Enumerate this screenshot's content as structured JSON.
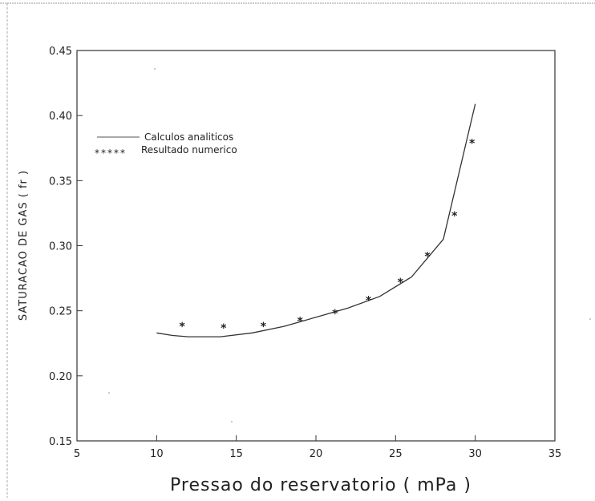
{
  "chart_data": {
    "type": "line",
    "title": "",
    "xlabel": "Pressao do reservatorio ( mPa )",
    "ylabel": "SATURACAO DE GAS ( fr )",
    "xlim": [
      5,
      35
    ],
    "ylim": [
      0.15,
      0.45
    ],
    "x_ticks": [
      "5",
      "10",
      "15",
      "20",
      "25",
      "30",
      "35"
    ],
    "y_ticks": [
      "0.15",
      "0.20",
      "0.25",
      "0.30",
      "0.35",
      "0.40",
      "0.45"
    ],
    "grid": false,
    "legend_position": "top-left",
    "series": [
      {
        "name": "Calculos analiticos",
        "style": "line",
        "color": "#333333",
        "x": [
          10,
          11,
          12,
          14,
          16,
          18,
          20,
          22,
          24,
          26,
          28,
          30
        ],
        "y": [
          0.233,
          0.231,
          0.23,
          0.23,
          0.233,
          0.238,
          0.245,
          0.252,
          0.261,
          0.276,
          0.305,
          0.409
        ]
      },
      {
        "name": "Resultado numerico",
        "style": "marker",
        "marker": "*",
        "color": "#222222",
        "x": [
          11.6,
          14.2,
          16.7,
          19.0,
          21.2,
          23.3,
          25.3,
          27.0,
          28.7,
          29.8
        ],
        "y": [
          0.238,
          0.237,
          0.238,
          0.242,
          0.248,
          0.258,
          0.272,
          0.292,
          0.323,
          0.379
        ]
      }
    ]
  }
}
